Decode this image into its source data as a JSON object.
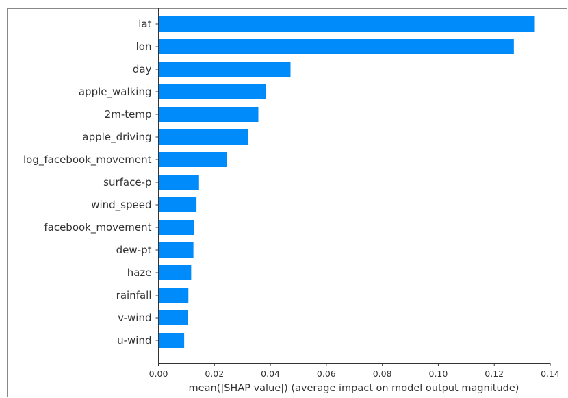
{
  "chart_data": {
    "type": "bar",
    "orientation": "horizontal",
    "categories": [
      "lat",
      "lon",
      "day",
      "apple_walking",
      "2m-temp",
      "apple_driving",
      "log_facebook_movement",
      "surface-p",
      "wind_speed",
      "facebook_movement",
      "dew-pt",
      "haze",
      "rainfall",
      "v-wind",
      "u-wind"
    ],
    "values": [
      0.1345,
      0.127,
      0.0472,
      0.0385,
      0.0357,
      0.032,
      0.0244,
      0.0145,
      0.0136,
      0.0126,
      0.0125,
      0.0117,
      0.0107,
      0.0105,
      0.0092
    ],
    "xlabel": "mean(|SHAP value|) (average impact on model output magnitude)",
    "ylabel": "",
    "xlim": [
      0,
      0.14
    ],
    "xticks": [
      "0.00",
      "0.02",
      "0.04",
      "0.06",
      "0.08",
      "0.10",
      "0.12",
      "0.14"
    ],
    "grid": false,
    "legend": "none",
    "bar_color": "#008bfb",
    "text_color": "#333333",
    "axis_color": "#333333",
    "frame_color": "#888888"
  }
}
